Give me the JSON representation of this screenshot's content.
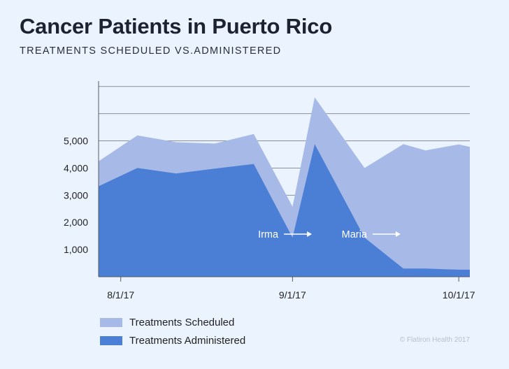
{
  "title": "Cancer Patients in Puerto Rico",
  "subtitle": "TREATMENTS SCHEDULED VS.ADMINISTERED",
  "credit": "© Flatiron Health 2017",
  "colors": {
    "scheduled": "#a7b9e6",
    "administered": "#4b7fd5",
    "grid": "#8a8f99",
    "axis": "#555a63"
  },
  "chart_data": {
    "type": "area",
    "x": [
      "2017-07-28",
      "2017-08-04",
      "2017-08-11",
      "2017-08-18",
      "2017-08-25",
      "2017-09-01",
      "2017-09-05",
      "2017-09-14",
      "2017-09-21",
      "2017-09-25",
      "2017-10-01",
      "2017-10-03"
    ],
    "xticks": [
      "8/1/17",
      "9/1/17",
      "10/1/17"
    ],
    "yticks": [
      "1,000",
      "2,000",
      "3,000",
      "4,000",
      "5,000"
    ],
    "ylim": [
      0,
      7200
    ],
    "series": [
      {
        "name": "Treatments Scheduled",
        "values": [
          4250,
          5200,
          4950,
          4900,
          5250,
          2580,
          6600,
          4000,
          4880,
          4650,
          4870,
          4780
        ]
      },
      {
        "name": "Treatments Administered",
        "values": [
          3330,
          4000,
          3800,
          3980,
          4150,
          1440,
          4880,
          1440,
          300,
          300,
          260,
          260
        ]
      }
    ],
    "annotations": [
      {
        "label": "Irma",
        "x": "2017-09-05"
      },
      {
        "label": "Maria",
        "x": "2017-09-21"
      }
    ]
  }
}
